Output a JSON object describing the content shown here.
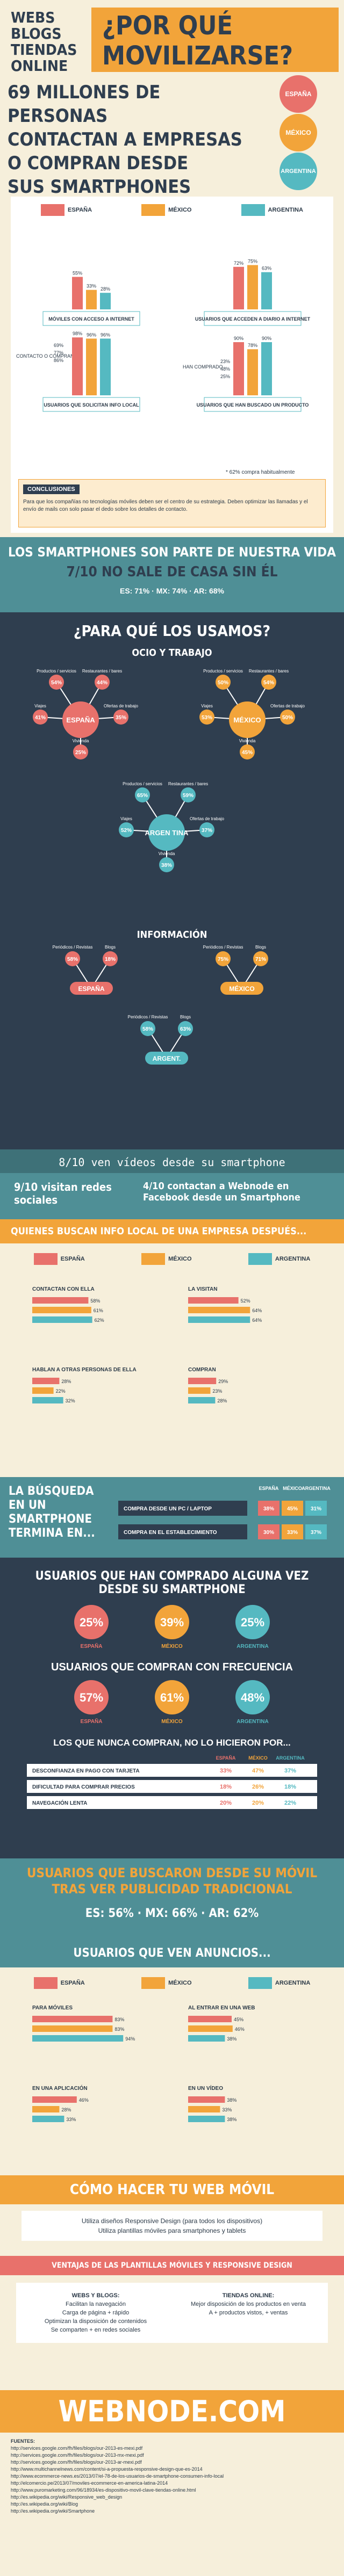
{
  "header": {
    "left_title": "WEBS\nBLOGS\nTIENDAS\nONLINE",
    "right_title": "¿POR QUÉ\nMOVILIZARSE?",
    "stat_line1": "69 MILLONES DE PERSONAS",
    "stat_line2": "CONTACTAN A EMPRESAS",
    "stat_line3": "O COMPRAN DESDE",
    "stat_line4": "SUS SMARTPHONES",
    "countries": [
      "ESPAÑA",
      "MÉXICO",
      "ARGENTINA"
    ]
  },
  "colors": {
    "spain": "#e8716b",
    "mexico": "#f2a43a",
    "argentina": "#55b9c1",
    "navy": "#2f3e4f",
    "teal": "#4f8f96",
    "cream": "#f6efdb"
  },
  "panel1": {
    "legend": [
      "ESPAÑA",
      "MÉXICO",
      "ARGENTINA"
    ],
    "mobile_access": {
      "label": "MÓVILES CON ACCESO A INTERNET",
      "values": [
        "55%",
        "33%",
        "28%"
      ]
    },
    "daily_access": {
      "label": "USUARIOS QUE ACCEDEN A DIARIO A INTERNET",
      "values": [
        "72%",
        "75%",
        "63%"
      ]
    },
    "contact_label": "CONTACTO O COMPRAN",
    "contact_values": [
      "69%",
      "77%",
      "86%"
    ],
    "local_info": {
      "label": "USUARIOS QUE SOLICITAN INFO LOCAL",
      "values": [
        "98%",
        "96%",
        "96%"
      ]
    },
    "bought_label": "HAN COMPRADO",
    "bought_values": [
      "23%",
      "48%",
      "25%"
    ],
    "searched": {
      "label": "USUARIOS QUE HAN BUSCADO UN PRODUCTO",
      "values": [
        "90%",
        "78%",
        "90%"
      ]
    },
    "footnote": "* 62% compra habitualmente",
    "conclusion_title": "CONCLUSIONES",
    "conclusion_text": "Para que los compañías no tecnologías móviles deben ser el centro de su estrategia. Deben optimizar las llamadas y el envío de mails con solo pasar el dedo sobre los detalles de contacto."
  },
  "part_of_life": {
    "title": "LOS SMARTPHONES SON PARTE DE NUESTRA VIDA",
    "subtitle": "7/10 NO SALE DE CASA SIN ÉL",
    "stats": "ES: 71% · MX: 74% · AR: 68%"
  },
  "uses": {
    "title": "¿PARA QUÉ LOS USAMOS?",
    "ocio_title": "OCIO Y TRABAJO",
    "labels": {
      "productos": "Productos / servicios",
      "restaurantes": "Restaurantes / bares",
      "viajes": "Viajes",
      "ofertas": "Ofertas de trabajo",
      "vivienda": "Vivienda"
    },
    "spain": {
      "name": "ESPAÑA",
      "productos": "54%",
      "restaurantes": "44%",
      "viajes": "41%",
      "ofertas": "35%",
      "vivienda": "25%"
    },
    "mexico": {
      "name": "MÉXICO",
      "productos": "50%",
      "restaurantes": "54%",
      "viajes": "53%",
      "ofertas": "50%",
      "vivienda": "45%"
    },
    "argentina": {
      "name": "ARGEN TINA",
      "productos": "65%",
      "restaurantes": "59%",
      "viajes": "52%",
      "ofertas": "37%",
      "vivienda": "38%"
    },
    "info_title": "INFORMACIÓN",
    "info_labels": {
      "periodicos": "Periódicos / Revistas",
      "blogs": "Blogs"
    },
    "info_spain": {
      "name": "ESPAÑA",
      "periodicos": "58%",
      "blogs": "18%"
    },
    "info_mexico": {
      "name": "MÉXICO",
      "periodicos": "75%",
      "blogs": "71%"
    },
    "info_argentina": {
      "name": "ARGENT.",
      "periodicos": "58%",
      "blogs": "63%"
    }
  },
  "video": {
    "title": "8/10 ven vídeos desde su smartphone",
    "left": "9/10 visitan redes sociales",
    "right": "4/10 contactan a Webnode en Facebook desde un Smartphone"
  },
  "local_info": {
    "title": "QUIENES BUSCAN INFO LOCAL DE UNA EMPRESA DESPUÉS...",
    "legend": [
      "ESPAÑA",
      "MÉXICO",
      "ARGENTINA"
    ],
    "groups": [
      {
        "label": "CONTACTAN CON ELLA",
        "values": [
          "58%",
          "61%",
          "62%"
        ]
      },
      {
        "label": "LA VISITAN",
        "values": [
          "52%",
          "64%",
          "64%"
        ]
      },
      {
        "label": "HABLAN A OTRAS PERSONAS DE ELLA",
        "values": [
          "28%",
          "22%",
          "32%"
        ]
      },
      {
        "label": "COMPRAN",
        "values": [
          "29%",
          "23%",
          "28%"
        ]
      }
    ]
  },
  "search": {
    "title": "LA BÚSQUEDA EN UN SMARTPHONE TERMINA EN...",
    "cols": [
      "ESPAÑA",
      "MÉXICO",
      "ARGENTINA"
    ],
    "rows": [
      {
        "label": "COMPRA DESDE UN PC / LAPTOP",
        "values": [
          "38%",
          "45%",
          "31%"
        ]
      },
      {
        "label": "COMPRA EN EL ESTABLECIMIENTO",
        "values": [
          "30%",
          "33%",
          "37%"
        ]
      }
    ]
  },
  "bought": {
    "title": "USUARIOS QUE HAN COMPRADO ALGUNA VEZ DESDE SU SMARTPHONE",
    "values": [
      {
        "v": "25%",
        "c": "ESPAÑA"
      },
      {
        "v": "39%",
        "c": "MÉXICO"
      },
      {
        "v": "25%",
        "c": "ARGENTINA"
      }
    ],
    "freq_title": "USUARIOS QUE COMPRAN CON FRECUENCIA",
    "freq_values": [
      {
        "v": "57%",
        "c": "ESPAÑA"
      },
      {
        "v": "61%",
        "c": "MÉXICO"
      },
      {
        "v": "48%",
        "c": "ARGENTINA"
      }
    ],
    "never_title": "LOS QUE NUNCA COMPRAN, NO LO HICIERON POR...",
    "never_cols": [
      "ESPAÑA",
      "MÉXICO",
      "ARGENTINA"
    ],
    "never_rows": [
      {
        "label": "DESCONFIANZA EN PAGO CON TARJETA",
        "values": [
          "33%",
          "47%",
          "37%"
        ]
      },
      {
        "label": "DIFICULTAD PARA COMPRAR PRECIOS",
        "values": [
          "18%",
          "26%",
          "18%"
        ]
      },
      {
        "label": "NAVEGACIÓN LENTA",
        "values": [
          "20%",
          "20%",
          "22%"
        ]
      }
    ]
  },
  "search_after": {
    "title": "USUARIOS QUE BUSCARON DESDE SU MÓVIL TRAS VER PUBLICIDAD TRADICIONAL",
    "stats": "ES: 56% · MX: 66% · AR: 62%"
  },
  "ads": {
    "title": "USUARIOS QUE VEN ANUNCIOS...",
    "legend": [
      "ESPAÑA",
      "MÉXICO",
      "ARGENTINA"
    ],
    "groups": [
      {
        "label": "PARA MÓVILES",
        "values": [
          "83%",
          "83%",
          "94%"
        ]
      },
      {
        "label": "AL ENTRAR EN UNA WEB",
        "values": [
          "45%",
          "46%",
          "38%"
        ]
      },
      {
        "label": "EN UNA APLICACIÓN",
        "values": [
          "46%",
          "28%",
          "33%"
        ]
      },
      {
        "label": "EN UN VÍDEO",
        "values": [
          "38%",
          "33%",
          "38%"
        ]
      }
    ]
  },
  "howto": {
    "title": "CÓMO HACER TU WEB MÓVIL",
    "line1": "Utiliza diseños Responsive Design (para todos los dispositivos)",
    "line2": "Utiliza plantillas móviles para smartphones y tablets"
  },
  "advantages": {
    "title": "VENTAJAS DE LAS PLANTILLAS MÓVILES Y RESPONSIVE DESIGN",
    "left_title": "WEBS Y BLOGS:",
    "left_items": [
      "Facilitan la navegación",
      "Carga de página + rápido",
      "Optimizan la disposición de contenidos",
      "Se comparten + en redes sociales"
    ],
    "right_title": "TIENDAS ONLINE:",
    "right_items": [
      "Mejor disposición de los productos en venta",
      "A + productos vistos, + ventas"
    ]
  },
  "footer": {
    "brand": "WEBNODE.COM",
    "sources_title": "FUENTES:",
    "sources": [
      "http://services.google.com/fh/files/blogs/our-2013-es-mexi.pdf",
      "http://services.google.com/fh/files/blogs/our-2013-mx-mexi.pdf",
      "http://services.google.com/fh/files/blogs/our-2013-ar-mexi.pdf",
      "http://www.multichannelnews.com/content/si-a-propuesta-responsive-design-que-es-2014",
      "http://www.ecommerce-news.es/2013/07/el-78-de-los-usuarios-de-smartphone-consumen-info-local",
      "http://elcomercio.pe/2013/07/moviles-ecommerce-en-america-latina-2014",
      "http://www.puromarketing.com/96/18934/es-dispositivo-movil-clave-tiendas-online.html",
      "http://es.wikipedia.org/wiki/Responsive_web_design",
      "http://es.wikipedia.org/wiki/Blog",
      "http://es.wikipedia.org/wiki/Smartphone"
    ]
  }
}
